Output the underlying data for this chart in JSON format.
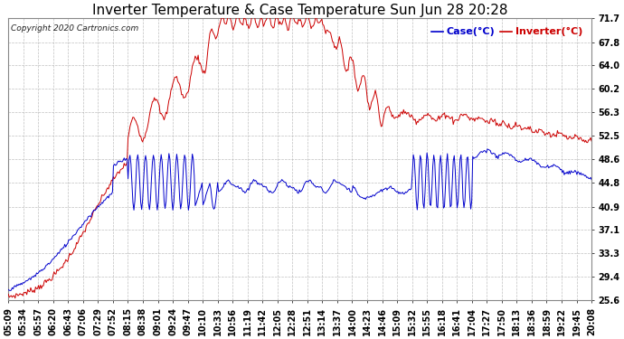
{
  "title": "Inverter Temperature & Case Temperature Sun Jun 28 20:28",
  "copyright": "Copyright 2020 Cartronics.com",
  "legend_case": "Case(°C)",
  "legend_inverter": "Inverter(°C)",
  "ylabel_right_ticks": [
    25.6,
    29.4,
    33.3,
    37.1,
    40.9,
    44.8,
    48.6,
    52.5,
    56.3,
    60.2,
    64.0,
    67.8,
    71.7
  ],
  "ymin": 25.6,
  "ymax": 71.7,
  "background_color": "#ffffff",
  "plot_bg_color": "#ffffff",
  "grid_color": "#b0b0b0",
  "case_color": "#0000cc",
  "inverter_color": "#cc0000",
  "title_color": "#000000",
  "title_fontsize": 11,
  "tick_fontsize": 7,
  "legend_fontsize": 8,
  "x_tick_labels": [
    "05:09",
    "05:34",
    "05:57",
    "06:20",
    "06:43",
    "07:06",
    "07:29",
    "07:52",
    "08:15",
    "08:38",
    "09:01",
    "09:24",
    "09:47",
    "10:10",
    "10:33",
    "10:56",
    "11:19",
    "11:42",
    "12:05",
    "12:28",
    "12:51",
    "13:14",
    "13:37",
    "14:00",
    "14:23",
    "14:46",
    "15:09",
    "15:32",
    "15:55",
    "16:18",
    "16:41",
    "17:04",
    "17:27",
    "17:50",
    "18:13",
    "18:36",
    "18:59",
    "19:22",
    "19:45",
    "20:08"
  ]
}
